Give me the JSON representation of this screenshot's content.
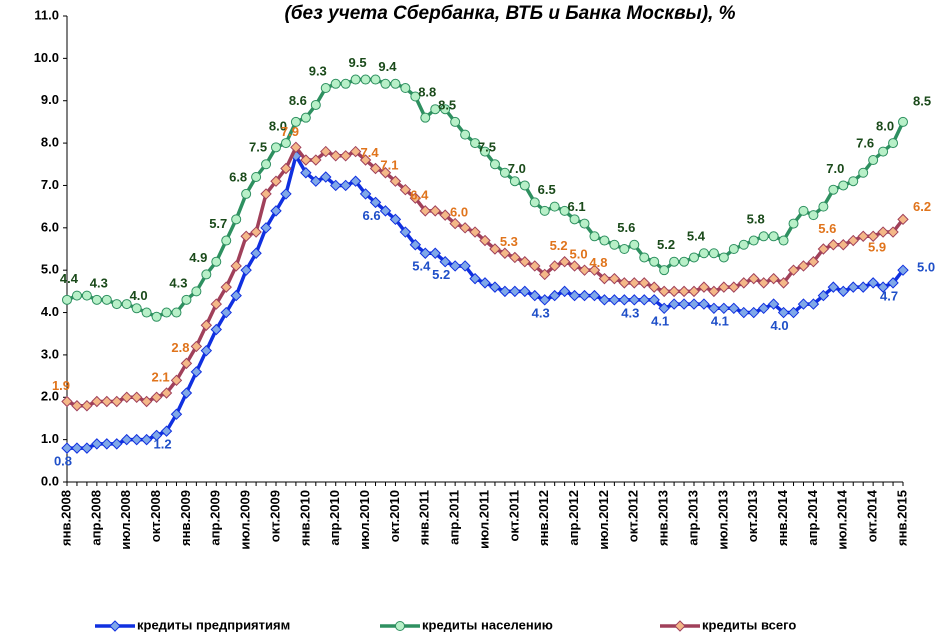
{
  "chart_data": {
    "type": "line",
    "title": "(без учета Сбербанка, ВТБ и Банка Москвы), %",
    "categories": [
      "янв.2008",
      null,
      null,
      "апр.2008",
      null,
      null,
      "июл.2008",
      null,
      null,
      "окт.2008",
      null,
      null,
      "янв.2009",
      null,
      null,
      "апр.2009",
      null,
      null,
      "июл.2009",
      null,
      null,
      "окт.2009",
      null,
      null,
      "янв.2010",
      null,
      null,
      "апр.2010",
      null,
      null,
      "июл.2010",
      null,
      null,
      "окт.2010",
      null,
      null,
      "янв.2011",
      null,
      null,
      "апр.2011",
      null,
      null,
      "июл.2011",
      null,
      null,
      "окт.2011",
      null,
      null,
      "янв.2012",
      null,
      null,
      "апр.2012",
      null,
      null,
      "июл.2012",
      null,
      null,
      "окт.2012",
      null,
      null,
      "янв.2013",
      null,
      null,
      "апр.2013",
      null,
      null,
      "июл.2013",
      null,
      null,
      "окт.2013",
      null,
      null,
      "янв.2014",
      null,
      null,
      "апр.2014",
      null,
      null,
      "июл.2014",
      null,
      null,
      "окт.2014",
      null,
      null,
      "янв.2015"
    ],
    "ylim": [
      0,
      11
    ],
    "yticks": [
      {
        "value": 0,
        "label": "0.0"
      },
      {
        "value": 1,
        "label": "1.0"
      },
      {
        "value": 2,
        "label": "2.0"
      },
      {
        "value": 3,
        "label": "3.0"
      },
      {
        "value": 4,
        "label": "4.0"
      },
      {
        "value": 5,
        "label": "5.0"
      },
      {
        "value": 6,
        "label": "6.0"
      },
      {
        "value": 7,
        "label": "7.0"
      },
      {
        "value": 8,
        "label": "8.0"
      },
      {
        "value": 9,
        "label": "9.0"
      },
      {
        "value": 10,
        "label": "10.0"
      },
      {
        "value": 11,
        "label": "11.0"
      }
    ],
    "grid": false,
    "series": [
      {
        "name": "кредиты предприятиям",
        "color": "#1030e0",
        "marker": "diamond",
        "marker_color": "#80a8e8",
        "label_color": "#1f4fc8",
        "values": [
          0.8,
          0.8,
          0.8,
          0.9,
          0.9,
          0.9,
          1.0,
          1.0,
          1.0,
          1.1,
          1.2,
          1.6,
          2.1,
          2.6,
          3.1,
          3.6,
          4.0,
          4.4,
          5.0,
          5.4,
          6.0,
          6.4,
          6.8,
          7.7,
          7.3,
          7.1,
          7.2,
          7.0,
          7.0,
          7.1,
          6.8,
          6.6,
          6.4,
          6.2,
          5.9,
          5.6,
          5.4,
          5.4,
          5.2,
          5.1,
          5.1,
          4.8,
          4.7,
          4.6,
          4.5,
          4.5,
          4.5,
          4.4,
          4.3,
          4.4,
          4.5,
          4.4,
          4.4,
          4.4,
          4.3,
          4.3,
          4.3,
          4.3,
          4.3,
          4.3,
          4.1,
          4.2,
          4.2,
          4.2,
          4.2,
          4.1,
          4.1,
          4.1,
          4.0,
          4.0,
          4.1,
          4.2,
          4.0,
          4.0,
          4.2,
          4.2,
          4.4,
          4.6,
          4.5,
          4.6,
          4.6,
          4.7,
          4.6,
          4.7,
          5.0
        ],
        "value_labels": [
          "0.8",
          null,
          null,
          null,
          null,
          null,
          null,
          null,
          null,
          null,
          "1.2",
          null,
          null,
          null,
          null,
          null,
          null,
          null,
          null,
          null,
          null,
          null,
          null,
          null,
          null,
          null,
          null,
          null,
          null,
          null,
          null,
          "6.6",
          null,
          null,
          null,
          null,
          "5.4",
          null,
          "5.2",
          null,
          null,
          null,
          null,
          null,
          null,
          null,
          null,
          null,
          "4.3",
          null,
          null,
          null,
          null,
          null,
          null,
          null,
          null,
          "4.3",
          null,
          null,
          "4.1",
          null,
          null,
          null,
          null,
          null,
          "4.1",
          null,
          null,
          null,
          null,
          null,
          "4.0",
          null,
          null,
          null,
          null,
          null,
          null,
          null,
          null,
          null,
          null,
          "4.7",
          "5.0"
        ]
      },
      {
        "name": "кредиты населению",
        "color": "#2e9060",
        "marker": "circle",
        "marker_color": "#b8f0c8",
        "label_color": "#1a4a1a",
        "values": [
          4.3,
          4.4,
          4.4,
          4.3,
          4.3,
          4.2,
          4.2,
          4.1,
          4.0,
          3.9,
          4.0,
          4.0,
          4.3,
          4.5,
          4.9,
          5.2,
          5.7,
          6.2,
          6.8,
          7.2,
          7.5,
          7.9,
          8.0,
          8.5,
          8.6,
          8.9,
          9.3,
          9.4,
          9.4,
          9.5,
          9.5,
          9.5,
          9.4,
          9.4,
          9.3,
          9.1,
          8.6,
          8.8,
          8.8,
          8.5,
          8.2,
          8.0,
          7.8,
          7.5,
          7.3,
          7.1,
          7.0,
          6.6,
          6.4,
          6.5,
          6.4,
          6.2,
          6.1,
          5.8,
          5.7,
          5.6,
          5.5,
          5.6,
          5.3,
          5.2,
          5.0,
          5.2,
          5.2,
          5.3,
          5.4,
          5.4,
          5.3,
          5.5,
          5.6,
          5.7,
          5.8,
          5.8,
          5.7,
          6.1,
          6.4,
          6.3,
          6.5,
          6.9,
          7.0,
          7.1,
          7.3,
          7.6,
          7.8,
          8.0,
          8.5
        ],
        "value_labels": [
          null,
          "4.4",
          null,
          null,
          "4.3",
          null,
          null,
          null,
          "4.0",
          null,
          null,
          null,
          "4.3",
          null,
          "4.9",
          null,
          "5.7",
          null,
          "6.8",
          null,
          "7.5",
          null,
          "8.0",
          null,
          "8.6",
          null,
          "9.3",
          null,
          null,
          null,
          "9.5",
          null,
          null,
          "9.4",
          null,
          null,
          null,
          "8.8",
          null,
          "8.5",
          null,
          null,
          null,
          "7.5",
          null,
          null,
          "7.0",
          null,
          null,
          "6.5",
          null,
          null,
          "6.1",
          null,
          null,
          null,
          null,
          "5.6",
          null,
          null,
          null,
          "5.2",
          null,
          null,
          "5.4",
          null,
          null,
          null,
          null,
          null,
          "5.8",
          null,
          null,
          null,
          null,
          null,
          null,
          null,
          "7.0",
          null,
          null,
          "7.6",
          null,
          "8.0",
          "8.5"
        ]
      },
      {
        "name": "кредиты всего",
        "color": "#a0405a",
        "marker": "diamond",
        "marker_color": "#f4b888",
        "label_color": "#e0741c",
        "values": [
          1.9,
          1.8,
          1.8,
          1.9,
          1.9,
          1.9,
          2.0,
          2.0,
          1.9,
          2.0,
          2.1,
          2.4,
          2.8,
          3.2,
          3.7,
          4.2,
          4.6,
          5.1,
          5.8,
          5.9,
          6.8,
          7.1,
          7.4,
          7.9,
          7.6,
          7.6,
          7.8,
          7.7,
          7.7,
          7.8,
          7.6,
          7.4,
          7.3,
          7.1,
          6.9,
          6.7,
          6.4,
          6.4,
          6.3,
          6.1,
          6.0,
          5.9,
          5.7,
          5.5,
          5.4,
          5.3,
          5.2,
          5.1,
          4.9,
          5.1,
          5.2,
          5.1,
          5.0,
          5.0,
          4.8,
          4.8,
          4.7,
          4.7,
          4.7,
          4.6,
          4.5,
          4.5,
          4.5,
          4.5,
          4.6,
          4.5,
          4.6,
          4.6,
          4.7,
          4.8,
          4.7,
          4.8,
          4.7,
          5.0,
          5.1,
          5.2,
          5.5,
          5.6,
          5.6,
          5.7,
          5.8,
          5.8,
          5.9,
          5.9,
          6.2
        ],
        "value_labels": [
          "1.9",
          null,
          null,
          null,
          null,
          null,
          null,
          null,
          null,
          null,
          "2.1",
          null,
          "2.8",
          null,
          null,
          null,
          null,
          null,
          null,
          null,
          null,
          null,
          null,
          "7.9",
          null,
          null,
          null,
          null,
          null,
          null,
          null,
          "7.4",
          null,
          "7.1",
          null,
          null,
          "6.4",
          null,
          null,
          null,
          "6.0",
          null,
          null,
          null,
          null,
          "5.3",
          null,
          null,
          null,
          null,
          "5.2",
          null,
          "5.0",
          null,
          "4.8",
          null,
          null,
          null,
          null,
          null,
          null,
          null,
          null,
          null,
          null,
          null,
          null,
          null,
          null,
          null,
          null,
          null,
          null,
          null,
          null,
          null,
          null,
          "5.6",
          null,
          null,
          null,
          null,
          "5.9",
          null,
          "6.2"
        ]
      }
    ]
  }
}
